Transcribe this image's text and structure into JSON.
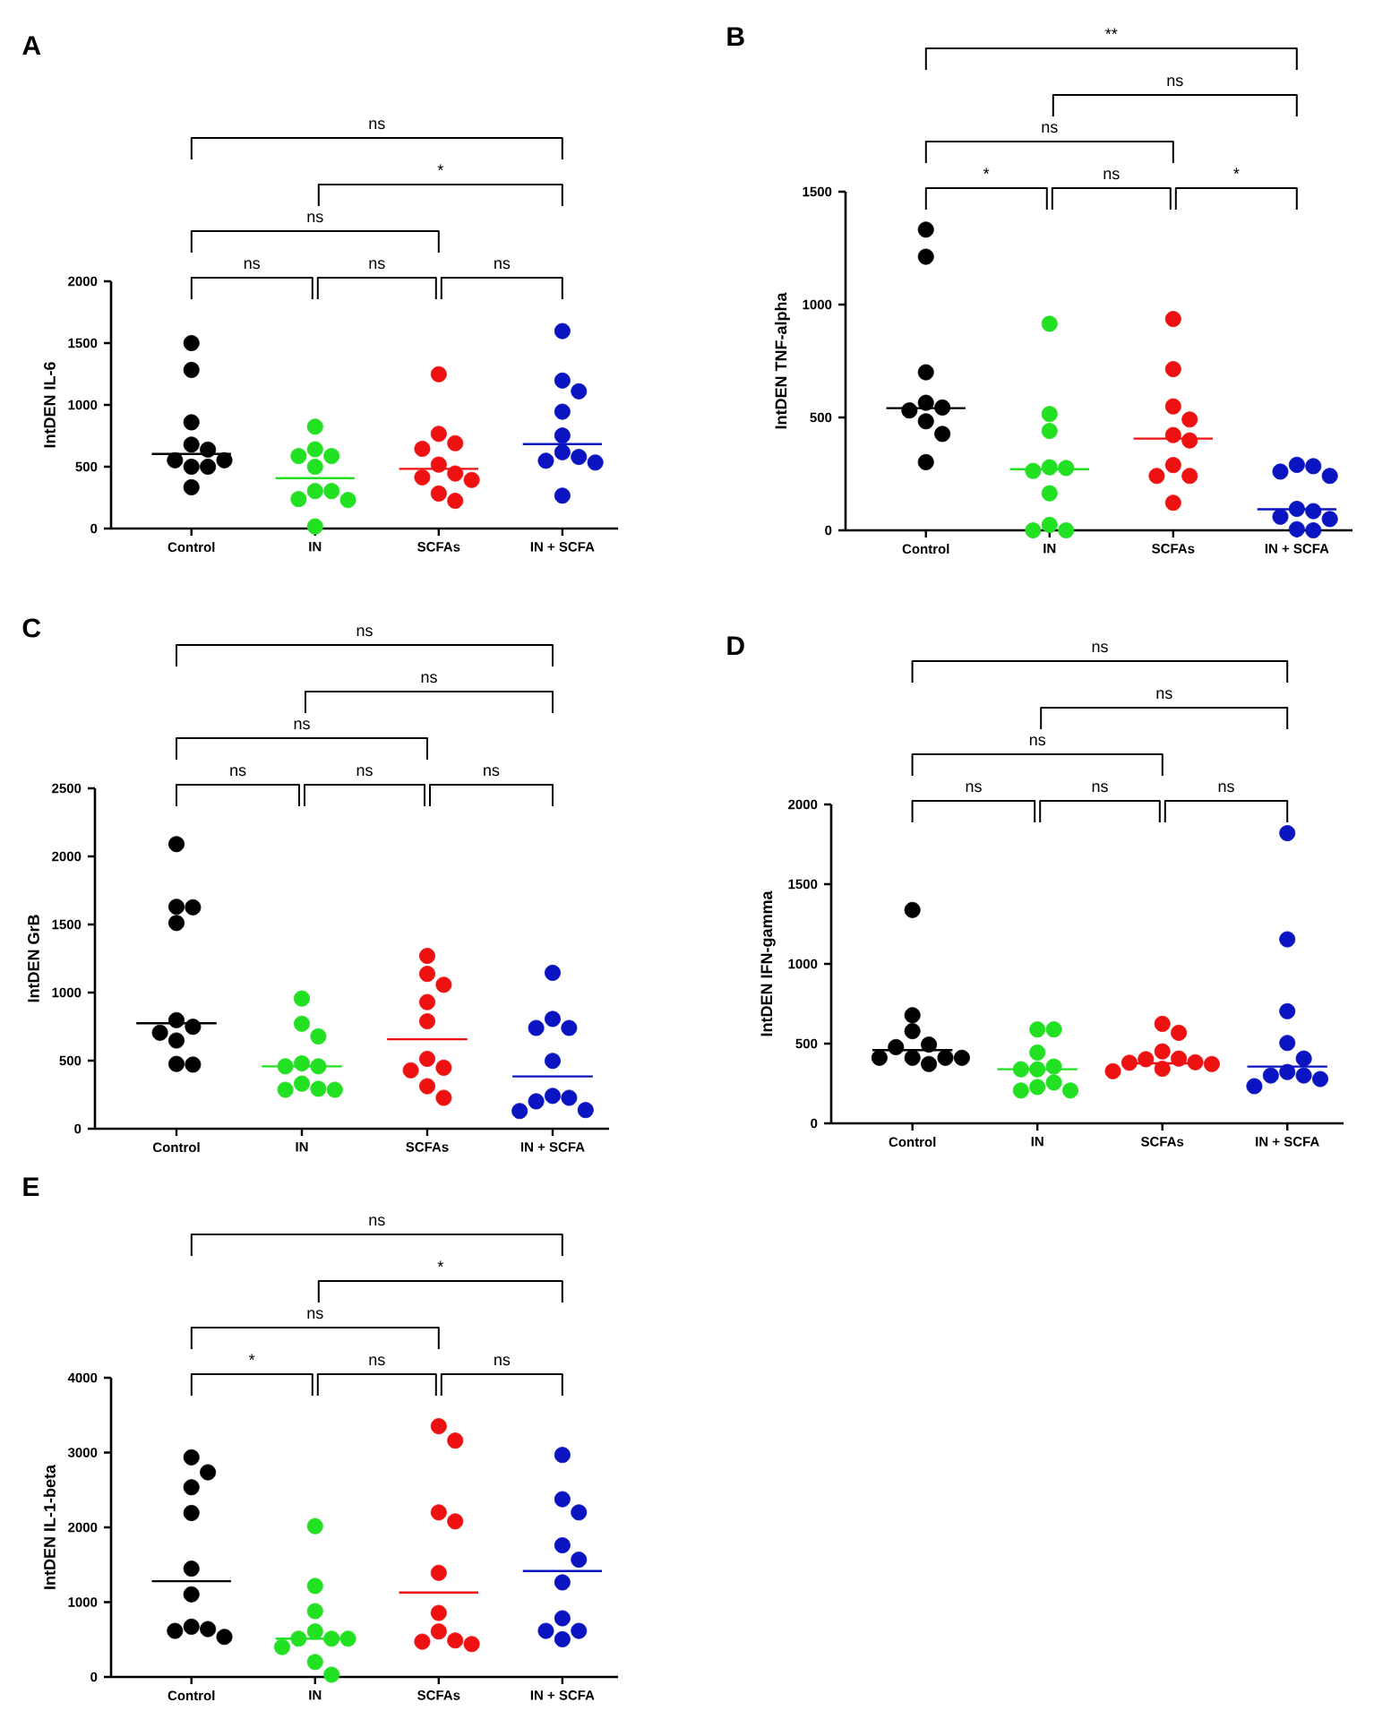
{
  "chart_data": [
    {
      "type": "scatter",
      "title": "A",
      "ylabel": "IntDEN IL-6",
      "categories": [
        "Control",
        "IN",
        "SCFAs",
        "IN + SCFA"
      ],
      "ylim": [
        0,
        2000
      ],
      "yticks": [
        0,
        500,
        1000,
        1500,
        2000
      ],
      "marker": "circle",
      "series": [
        {
          "color": "#000000",
          "x": [
            "Control",
            "Control",
            "Control",
            "Control",
            "Control",
            "Control",
            "Control",
            "Control",
            "Control",
            "Control"
          ],
          "values": [
            1500,
            1283,
            859,
            679,
            638,
            552,
            552,
            500,
            500,
            334
          ]
        },
        {
          "color": "#22e022",
          "x": [
            "IN",
            "IN",
            "IN",
            "IN",
            "IN",
            "IN",
            "IN",
            "IN",
            "IN",
            "IN"
          ],
          "values": [
            824,
            641,
            586,
            586,
            500,
            303,
            303,
            238,
            231,
            17
          ]
        },
        {
          "color": "#ee1111",
          "x": [
            "SCFAs",
            "SCFAs",
            "SCFAs",
            "SCFAs",
            "SCFAs",
            "SCFAs",
            "SCFAs",
            "SCFAs",
            "SCFAs",
            "SCFAs"
          ],
          "values": [
            1248,
            766,
            690,
            645,
            517,
            445,
            414,
            393,
            283,
            224
          ]
        },
        {
          "color": "#0a14c0",
          "x": [
            "IN + SCFA",
            "IN + SCFA",
            "IN + SCFA",
            "IN + SCFA",
            "IN + SCFA",
            "IN + SCFA",
            "IN + SCFA",
            "IN + SCFA",
            "IN + SCFA",
            "IN + SCFA"
          ],
          "values": [
            1597,
            1197,
            1110,
            945,
            752,
            617,
            579,
            548,
            534,
            266
          ]
        }
      ],
      "ref_lines": [
        {
          "axis": "y",
          "value": 603,
          "color": "#000000"
        },
        {
          "axis": "y",
          "value": 407,
          "color": "#22e022"
        },
        {
          "axis": "y",
          "value": 483,
          "color": "#ee1111"
        },
        {
          "axis": "y",
          "value": 683,
          "color": "#0a14c0"
        }
      ],
      "annotations": [
        "ns",
        "*",
        "ns",
        "ns",
        "ns",
        "ns"
      ]
    },
    {
      "type": "scatter",
      "title": "B",
      "ylabel": "IntDEN TNF-alpha",
      "categories": [
        "Control",
        "IN",
        "SCFAs",
        "IN + SCFA"
      ],
      "ylim": [
        0,
        1500
      ],
      "yticks": [
        0,
        500,
        1000,
        1500
      ],
      "marker": "circle",
      "series": [
        {
          "color": "#000000",
          "x": [
            "Control",
            "Control",
            "Control",
            "Control",
            "Control",
            "Control",
            "Control",
            "Control",
            "Control"
          ],
          "values": [
            1332,
            1212,
            700,
            565,
            544,
            531,
            483,
            427,
            302
          ]
        },
        {
          "color": "#22e022",
          "x": [
            "IN",
            "IN",
            "IN",
            "IN",
            "IN",
            "IN",
            "IN",
            "IN",
            "IN",
            "IN"
          ],
          "values": [
            915,
            515,
            440,
            279,
            276,
            263,
            164,
            24,
            0,
            0
          ]
        },
        {
          "color": "#ee1111",
          "x": [
            "SCFAs",
            "SCFAs",
            "SCFAs",
            "SCFAs",
            "SCFAs",
            "SCFAs",
            "SCFAs",
            "SCFAs",
            "SCFAs",
            "SCFAs"
          ],
          "values": [
            936,
            714,
            549,
            491,
            422,
            398,
            289,
            241,
            241,
            122
          ]
        },
        {
          "color": "#0a14c0",
          "x": [
            "IN + SCFA",
            "IN + SCFA",
            "IN + SCFA",
            "IN + SCFA",
            "IN + SCFA",
            "IN + SCFA",
            "IN + SCFA",
            "IN + SCFA",
            "IN + SCFA",
            "IN + SCFA"
          ],
          "values": [
            290,
            284,
            260,
            241,
            95,
            85,
            60,
            50,
            5,
            0
          ]
        }
      ],
      "ref_lines": [
        {
          "axis": "y",
          "value": 541,
          "color": "#000000"
        },
        {
          "axis": "y",
          "value": 271,
          "color": "#22e022"
        },
        {
          "axis": "y",
          "value": 406,
          "color": "#ee1111"
        },
        {
          "axis": "y",
          "value": 93,
          "color": "#0a14c0"
        }
      ],
      "annotations": [
        "**",
        "ns",
        "ns",
        "*",
        "ns",
        "*"
      ]
    },
    {
      "type": "scatter",
      "title": "C",
      "ylabel": "IntDEN GrB",
      "categories": [
        "Control",
        "IN",
        "SCFAs",
        "IN + SCFA"
      ],
      "ylim": [
        0,
        2500
      ],
      "yticks": [
        0,
        500,
        1000,
        1500,
        2000,
        2500
      ],
      "marker": "circle",
      "series": [
        {
          "color": "#000000",
          "x": [
            "Control",
            "Control",
            "Control",
            "Control",
            "Control",
            "Control",
            "Control",
            "Control",
            "Control",
            "Control"
          ],
          "values": [
            2090,
            1630,
            1626,
            1511,
            797,
            749,
            705,
            648,
            476,
            471
          ]
        },
        {
          "color": "#22e022",
          "x": [
            "IN",
            "IN",
            "IN",
            "IN",
            "IN",
            "IN",
            "IN",
            "IN",
            "IN",
            "IN"
          ],
          "values": [
            956,
            771,
            678,
            480,
            458,
            458,
            331,
            293,
            286,
            286
          ]
        },
        {
          "color": "#ee1111",
          "x": [
            "SCFAs",
            "SCFAs",
            "SCFAs",
            "SCFAs",
            "SCFAs",
            "SCFAs",
            "SCFAs",
            "SCFAs",
            "SCFAs",
            "SCFAs"
          ],
          "values": [
            1269,
            1137,
            1057,
            930,
            789,
            513,
            448,
            429,
            312,
            227
          ]
        },
        {
          "color": "#0a14c0",
          "x": [
            "IN + SCFA",
            "IN + SCFA",
            "IN + SCFA",
            "IN + SCFA",
            "IN + SCFA",
            "IN + SCFA",
            "IN + SCFA",
            "IN + SCFA",
            "IN + SCFA",
            "IN + SCFA"
          ],
          "values": [
            1145,
            806,
            740,
            740,
            498,
            241,
            227,
            201,
            137,
            130
          ]
        }
      ],
      "ref_lines": [
        {
          "axis": "y",
          "value": 775,
          "color": "#000000"
        },
        {
          "axis": "y",
          "value": 458,
          "color": "#22e022"
        },
        {
          "axis": "y",
          "value": 657,
          "color": "#ee1111"
        },
        {
          "axis": "y",
          "value": 384,
          "color": "#0a14c0"
        }
      ],
      "annotations": [
        "ns",
        "ns",
        "ns",
        "ns",
        "ns",
        "ns"
      ]
    },
    {
      "type": "scatter",
      "title": "D",
      "ylabel": "IntDEN IFN-gamma",
      "categories": [
        "Control",
        "IN",
        "SCFAs",
        "IN + SCFA"
      ],
      "ylim": [
        0,
        2000
      ],
      "yticks": [
        0,
        500,
        1000,
        1500,
        2000
      ],
      "marker": "circle",
      "series": [
        {
          "color": "#000000",
          "x": [
            "Control",
            "Control",
            "Control",
            "Control",
            "Control",
            "Control",
            "Control",
            "Control",
            "Control",
            "Control"
          ],
          "values": [
            1338,
            678,
            578,
            494,
            478,
            411,
            411,
            411,
            411,
            372
          ]
        },
        {
          "color": "#22e022",
          "x": [
            "IN",
            "IN",
            "IN",
            "IN",
            "IN",
            "IN",
            "IN",
            "IN",
            "IN",
            "IN"
          ],
          "values": [
            589,
            589,
            444,
            356,
            339,
            339,
            256,
            228,
            206,
            206
          ]
        },
        {
          "color": "#ee1111",
          "x": [
            "SCFAs",
            "SCFAs",
            "SCFAs",
            "SCFAs",
            "SCFAs",
            "SCFAs",
            "SCFAs",
            "SCFAs",
            "SCFAs",
            "SCFAs"
          ],
          "values": [
            624,
            568,
            451,
            406,
            402,
            383,
            380,
            372,
            342,
            327
          ]
        },
        {
          "color": "#0a14c0",
          "x": [
            "IN + SCFA",
            "IN + SCFA",
            "IN + SCFA",
            "IN + SCFA",
            "IN + SCFA",
            "IN + SCFA",
            "IN + SCFA",
            "IN + SCFA",
            "IN + SCFA",
            "IN + SCFA"
          ],
          "values": [
            1820,
            1154,
            703,
            504,
            406,
            322,
            300,
            300,
            278,
            233
          ]
        }
      ],
      "ref_lines": [
        {
          "axis": "y",
          "value": 459,
          "color": "#000000"
        },
        {
          "axis": "y",
          "value": 339,
          "color": "#22e022"
        },
        {
          "axis": "y",
          "value": 376,
          "color": "#ee1111"
        },
        {
          "axis": "y",
          "value": 356,
          "color": "#0a14c0"
        }
      ],
      "annotations": [
        "ns",
        "ns",
        "ns",
        "ns",
        "ns",
        "ns"
      ]
    },
    {
      "type": "scatter",
      "title": "E",
      "ylabel": "IntDEN IL-1-beta",
      "categories": [
        "Control",
        "IN",
        "SCFAs",
        "IN + SCFA"
      ],
      "ylim": [
        0,
        4000
      ],
      "yticks": [
        0,
        1000,
        2000,
        3000,
        4000
      ],
      "marker": "circle",
      "series": [
        {
          "color": "#000000",
          "x": [
            "Control",
            "Control",
            "Control",
            "Control",
            "Control",
            "Control",
            "Control",
            "Control",
            "Control",
            "Control"
          ],
          "values": [
            2936,
            2736,
            2536,
            2192,
            1448,
            1104,
            672,
            640,
            616,
            536
          ]
        },
        {
          "color": "#22e022",
          "x": [
            "IN",
            "IN",
            "IN",
            "IN",
            "IN",
            "IN",
            "IN",
            "IN",
            "IN",
            "IN"
          ],
          "values": [
            2016,
            1216,
            880,
            608,
            512,
            512,
            512,
            400,
            200,
            30
          ]
        },
        {
          "color": "#ee1111",
          "x": [
            "SCFAs",
            "SCFAs",
            "SCFAs",
            "SCFAs",
            "SCFAs",
            "SCFAs",
            "SCFAs",
            "SCFAs",
            "SCFAs",
            "SCFAs"
          ],
          "values": [
            3352,
            3160,
            2200,
            2080,
            1392,
            856,
            608,
            488,
            472,
            440
          ]
        },
        {
          "color": "#0a14c0",
          "x": [
            "IN + SCFA",
            "IN + SCFA",
            "IN + SCFA",
            "IN + SCFA",
            "IN + SCFA",
            "IN + SCFA",
            "IN + SCFA",
            "IN + SCFA",
            "IN + SCFA",
            "IN + SCFA"
          ],
          "values": [
            2968,
            2376,
            2200,
            1760,
            1568,
            1264,
            784,
            616,
            616,
            504
          ]
        }
      ],
      "ref_lines": [
        {
          "axis": "y",
          "value": 1280,
          "color": "#000000"
        },
        {
          "axis": "y",
          "value": 512,
          "color": "#22e022"
        },
        {
          "axis": "y",
          "value": 1128,
          "color": "#ee1111"
        },
        {
          "axis": "y",
          "value": 1416,
          "color": "#0a14c0"
        }
      ],
      "annotations": [
        "ns",
        "*",
        "ns",
        "*",
        "ns",
        "ns"
      ]
    }
  ]
}
